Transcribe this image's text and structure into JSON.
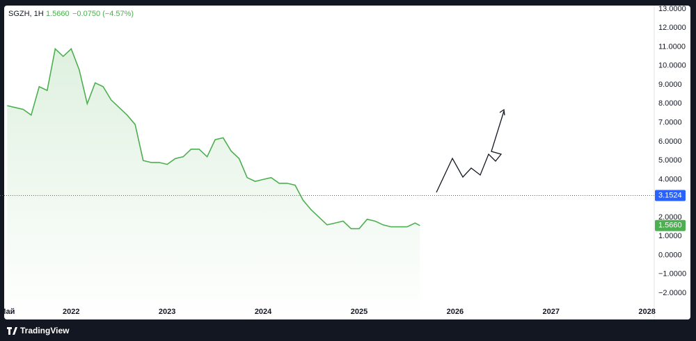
{
  "chart_data": {
    "type": "line",
    "header": {
      "symbol": "SGZH, 1H",
      "last": "1.5660",
      "change": "−0.0750 (−4.57%)"
    },
    "x": [
      0,
      1,
      2,
      3,
      4,
      5,
      6,
      7,
      8,
      9,
      10,
      11,
      12,
      13,
      14,
      15,
      16,
      17,
      18,
      19,
      20,
      21,
      22,
      23,
      24,
      25,
      26,
      27,
      28,
      29,
      30,
      31,
      32,
      33,
      34,
      35,
      36,
      37,
      38,
      39,
      40,
      41,
      42,
      43,
      44,
      45,
      46,
      47,
      48,
      49,
      50,
      51,
      51.6
    ],
    "series": [
      {
        "color": "#4caf50",
        "values": [
          7.9,
          7.8,
          7.7,
          7.4,
          8.9,
          8.7,
          10.9,
          10.5,
          10.9,
          9.8,
          8.0,
          9.1,
          8.9,
          8.2,
          7.8,
          7.4,
          6.9,
          5.0,
          4.9,
          4.9,
          4.8,
          5.1,
          5.2,
          5.6,
          5.6,
          5.2,
          6.1,
          6.2,
          5.5,
          5.1,
          4.1,
          3.9,
          4.0,
          4.1,
          3.8,
          3.8,
          3.7,
          2.9,
          2.4,
          2.0,
          1.6,
          1.7,
          1.8,
          1.4,
          1.4,
          1.9,
          1.8,
          1.6,
          1.5,
          1.5,
          1.5,
          1.7,
          1.566
        ]
      }
    ],
    "xlim": [
      -0.9,
      80.9
    ],
    "xticks": [
      {
        "value": 0,
        "label": "Май"
      },
      {
        "value": 8,
        "label": "2022"
      },
      {
        "value": 20,
        "label": "2023"
      },
      {
        "value": 32,
        "label": "2024"
      },
      {
        "value": 44,
        "label": "2025"
      },
      {
        "value": 56,
        "label": "2026"
      },
      {
        "value": 68,
        "label": "2027"
      },
      {
        "value": 80,
        "label": "2028"
      }
    ],
    "ylim": [
      -2.0,
      13.0
    ],
    "yticks": [
      {
        "value": 13,
        "label": "13.0000"
      },
      {
        "value": 12,
        "label": "12.0000"
      },
      {
        "value": 11,
        "label": "11.0000"
      },
      {
        "value": 10,
        "label": "10.0000"
      },
      {
        "value": 9,
        "label": "9.0000"
      },
      {
        "value": 8,
        "label": "8.0000"
      },
      {
        "value": 7,
        "label": "7.0000"
      },
      {
        "value": 6,
        "label": "6.0000"
      },
      {
        "value": 5,
        "label": "5.0000"
      },
      {
        "value": 4,
        "label": "4.0000"
      },
      {
        "value": 2,
        "label": "2.0000"
      },
      {
        "value": 1,
        "label": "1.0000"
      },
      {
        "value": 0,
        "label": "0.0000"
      },
      {
        "value": -1,
        "label": "−1.0000"
      },
      {
        "value": -2,
        "label": "−2.0000"
      }
    ],
    "price_line": {
      "value": 3.1524,
      "label": "3.1524",
      "color": "#2962ff"
    },
    "brand": "TradingView"
  }
}
